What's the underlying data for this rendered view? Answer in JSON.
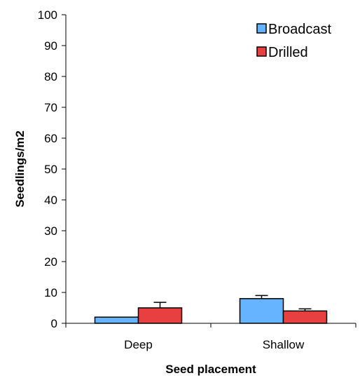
{
  "chart_data": {
    "type": "bar",
    "title": "",
    "xlabel": "Seed placement",
    "ylabel": "Seedlings/m2",
    "categories": [
      "Deep",
      "Shallow"
    ],
    "ylim": [
      0,
      100
    ],
    "yticks": [
      0,
      10,
      20,
      30,
      40,
      50,
      60,
      70,
      80,
      90,
      100
    ],
    "grid": false,
    "legend_position": "top-right",
    "series": [
      {
        "name": "Broadcast",
        "color": "#66b3ff",
        "values": [
          2,
          8
        ],
        "errors": [
          0,
          1
        ]
      },
      {
        "name": "Drilled",
        "color": "#e84040",
        "values": [
          5,
          4
        ],
        "errors": [
          1.8,
          0.7
        ]
      }
    ]
  }
}
